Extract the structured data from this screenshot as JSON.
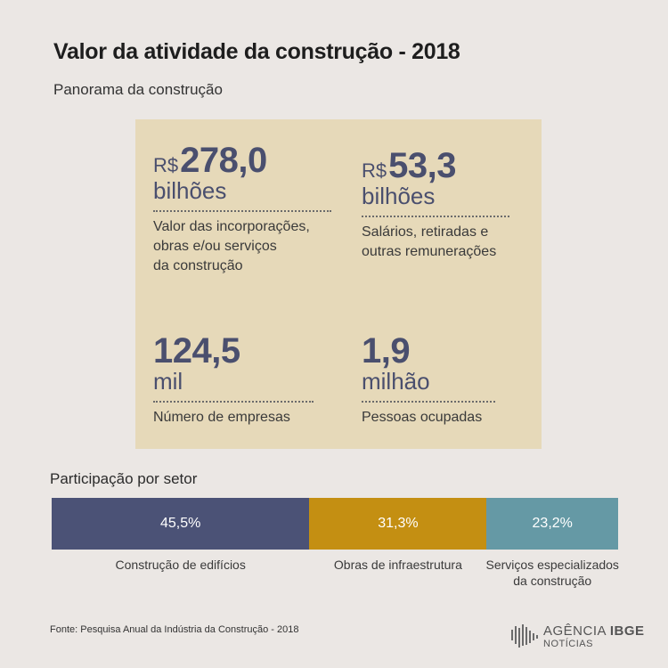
{
  "title": "Valor da atividade da construção - 2018",
  "subtitle": "Panorama da construção",
  "panel": {
    "stats": [
      {
        "prefix": "R$",
        "value": "278,0",
        "unit": "bilhões",
        "description": [
          "Valor das incorporações,",
          "obras e/ou serviços",
          "da construção"
        ]
      },
      {
        "prefix": "R$",
        "value": "53,3",
        "unit": "bilhões",
        "description": [
          "Salários, retiradas e",
          "outras remunerações"
        ]
      },
      {
        "prefix": "",
        "value": "124,5",
        "unit": "mil",
        "description": [
          "Número de empresas"
        ]
      },
      {
        "prefix": "",
        "value": "1,9",
        "unit": "milhão",
        "description": [
          "Pessoas ocupadas"
        ]
      }
    ]
  },
  "chart_data": {
    "type": "bar",
    "title": "Participação por setor",
    "stacked": true,
    "orientation": "horizontal",
    "categories": [
      "Construção de edifícios",
      "Obras de infraestrutura",
      "Serviços especializados da construção"
    ],
    "values": [
      45.5,
      31.3,
      23.2
    ],
    "value_labels": [
      "45,5%",
      "31,3%",
      "23,2%"
    ],
    "category_label_lines": [
      [
        "Construção de edifícios"
      ],
      [
        "Obras de infraestrutura"
      ],
      [
        "Serviços especializados",
        "da construção"
      ]
    ],
    "colors": [
      "#4b5276",
      "#c48f12",
      "#6599a5"
    ]
  },
  "source": "Fonte:  Pesquisa Anual da Indústria da Construção - 2018",
  "logo": {
    "line1_regular": "AGÊNCIA",
    "line1_bold": "IBGE",
    "line2": "NOTÍCIAS"
  }
}
